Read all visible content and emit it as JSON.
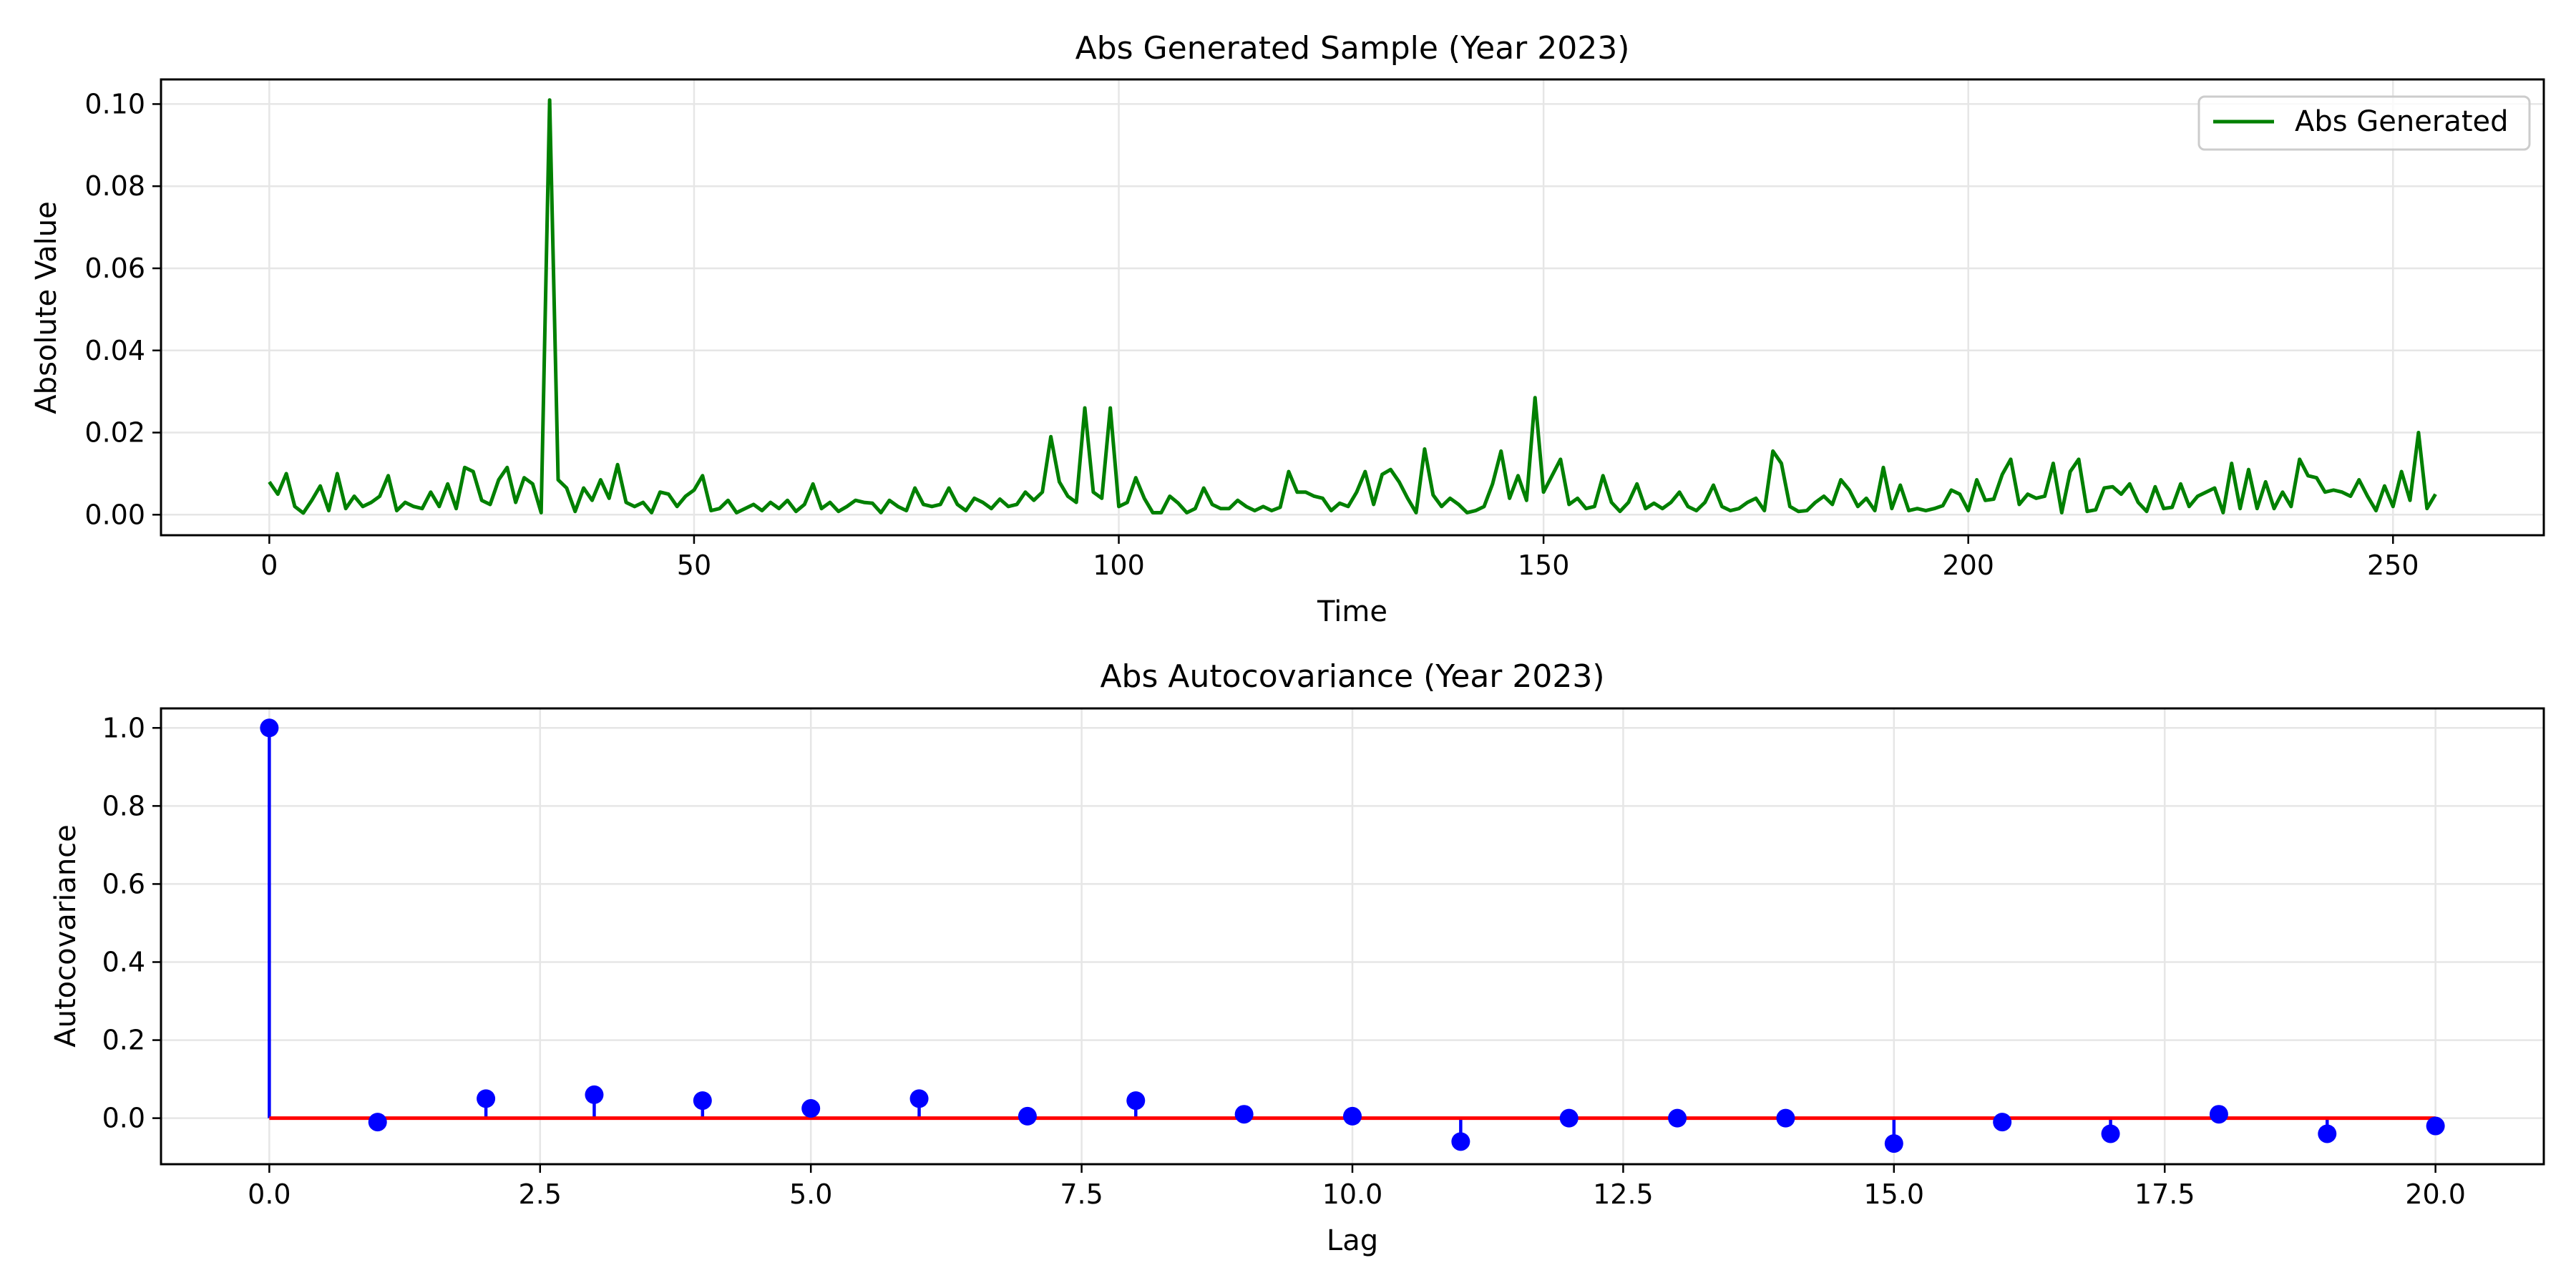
{
  "chart_data": [
    {
      "type": "line",
      "title": "Abs Generated Sample (Year 2023)",
      "xlabel": "Time",
      "ylabel": "Absolute Value",
      "xlim": [
        -12.75,
        267.75
      ],
      "ylim": [
        -0.005,
        0.106
      ],
      "xticks": [
        0,
        50,
        100,
        150,
        200,
        250
      ],
      "xtick_labels": [
        "0",
        "50",
        "100",
        "150",
        "200",
        "250"
      ],
      "yticks": [
        0.0,
        0.02,
        0.04,
        0.06,
        0.08,
        0.1
      ],
      "ytick_labels": [
        "0.00",
        "0.02",
        "0.04",
        "0.06",
        "0.08",
        "0.10"
      ],
      "grid": true,
      "legend": {
        "position": "top-right",
        "entries": [
          {
            "label": "Abs Generated",
            "color": "#008000"
          }
        ]
      },
      "series": [
        {
          "name": "Abs Generated",
          "color": "#008000",
          "x_start": 0,
          "x_step": 1,
          "values": [
            0.008,
            0.005,
            0.01,
            0.002,
            0.0004,
            0.0035,
            0.007,
            0.001,
            0.01,
            0.0015,
            0.0045,
            0.002,
            0.003,
            0.0045,
            0.0095,
            0.001,
            0.003,
            0.002,
            0.0015,
            0.0055,
            0.002,
            0.0075,
            0.0015,
            0.0115,
            0.0105,
            0.0035,
            0.0025,
            0.0085,
            0.0115,
            0.003,
            0.009,
            0.0075,
            0.0005,
            0.101,
            0.0085,
            0.0065,
            0.0008,
            0.0065,
            0.0035,
            0.0085,
            0.004,
            0.0122,
            0.003,
            0.002,
            0.003,
            0.0005,
            0.0055,
            0.005,
            0.002,
            0.0045,
            0.006,
            0.0095,
            0.001,
            0.0015,
            0.0035,
            0.0005,
            0.0015,
            0.0025,
            0.001,
            0.003,
            0.0015,
            0.0035,
            0.0008,
            0.0025,
            0.0075,
            0.0015,
            0.003,
            0.0008,
            0.002,
            0.0035,
            0.003,
            0.0028,
            0.0005,
            0.0035,
            0.002,
            0.001,
            0.0065,
            0.0025,
            0.002,
            0.0025,
            0.0065,
            0.0025,
            0.001,
            0.004,
            0.003,
            0.0015,
            0.0038,
            0.002,
            0.0025,
            0.0055,
            0.0035,
            0.0055,
            0.019,
            0.008,
            0.0045,
            0.003,
            0.026,
            0.0055,
            0.004,
            0.026,
            0.002,
            0.003,
            0.009,
            0.004,
            0.0005,
            0.0005,
            0.0045,
            0.0028,
            0.0005,
            0.0015,
            0.0065,
            0.0025,
            0.0015,
            0.0015,
            0.0035,
            0.002,
            0.001,
            0.002,
            0.001,
            0.0018,
            0.0105,
            0.0055,
            0.0055,
            0.0045,
            0.004,
            0.001,
            0.0028,
            0.002,
            0.0055,
            0.0105,
            0.0025,
            0.0098,
            0.011,
            0.008,
            0.004,
            0.0005,
            0.016,
            0.0048,
            0.002,
            0.004,
            0.0025,
            0.0005,
            0.001,
            0.002,
            0.0075,
            0.0155,
            0.004,
            0.0095,
            0.0035,
            0.0285,
            0.0055,
            0.0095,
            0.0135,
            0.0025,
            0.004,
            0.0015,
            0.002,
            0.0095,
            0.003,
            0.0008,
            0.003,
            0.0075,
            0.0015,
            0.0028,
            0.0015,
            0.003,
            0.0055,
            0.002,
            0.001,
            0.003,
            0.0072,
            0.002,
            0.001,
            0.0015,
            0.003,
            0.004,
            0.001,
            0.0155,
            0.0125,
            0.002,
            0.0008,
            0.001,
            0.003,
            0.0045,
            0.0025,
            0.0085,
            0.006,
            0.002,
            0.004,
            0.001,
            0.0115,
            0.0015,
            0.0072,
            0.001,
            0.0015,
            0.001,
            0.0015,
            0.0022,
            0.006,
            0.005,
            0.001,
            0.0085,
            0.0035,
            0.0038,
            0.0098,
            0.0135,
            0.0025,
            0.005,
            0.004,
            0.0045,
            0.0125,
            0.0005,
            0.0105,
            0.0135,
            0.0008,
            0.0012,
            0.0065,
            0.0068,
            0.005,
            0.0075,
            0.003,
            0.0008,
            0.0068,
            0.0015,
            0.0018,
            0.0075,
            0.002,
            0.0045,
            0.0055,
            0.0065,
            0.0005,
            0.0125,
            0.0015,
            0.011,
            0.0015,
            0.008,
            0.0015,
            0.0055,
            0.002,
            0.0135,
            0.0095,
            0.009,
            0.0055,
            0.006,
            0.0055,
            0.0045,
            0.0085,
            0.0045,
            0.001,
            0.007,
            0.002,
            0.0105,
            0.0035,
            0.02,
            0.0015,
            0.005
          ]
        }
      ]
    },
    {
      "type": "stem",
      "title": "Abs Autocovariance (Year 2023)",
      "xlabel": "Lag",
      "ylabel": "Autocovariance",
      "xlim": [
        -1.0,
        21.0
      ],
      "ylim": [
        -0.118,
        1.05
      ],
      "xticks": [
        0.0,
        2.5,
        5.0,
        7.5,
        10.0,
        12.5,
        15.0,
        17.5,
        20.0
      ],
      "xtick_labels": [
        "0.0",
        "2.5",
        "5.0",
        "7.5",
        "10.0",
        "12.5",
        "15.0",
        "17.5",
        "20.0"
      ],
      "yticks": [
        0.0,
        0.2,
        0.4,
        0.6,
        0.8,
        1.0
      ],
      "ytick_labels": [
        "0.0",
        "0.2",
        "0.4",
        "0.6",
        "0.8",
        "1.0"
      ],
      "grid": true,
      "baseline": 0.0,
      "marker_color": "#0000ff",
      "baseline_color": "#ff0000",
      "series": [
        {
          "x": [
            0,
            1,
            2,
            3,
            4,
            5,
            6,
            7,
            8,
            9,
            10,
            11,
            12,
            13,
            14,
            15,
            16,
            17,
            18,
            19,
            20
          ],
          "values": [
            1.0,
            -0.01,
            0.05,
            0.06,
            0.045,
            0.025,
            0.05,
            0.005,
            0.045,
            0.01,
            0.005,
            -0.06,
            0.0,
            0.0,
            0.0,
            -0.065,
            -0.01,
            -0.04,
            0.01,
            -0.04,
            -0.02
          ]
        }
      ]
    }
  ]
}
